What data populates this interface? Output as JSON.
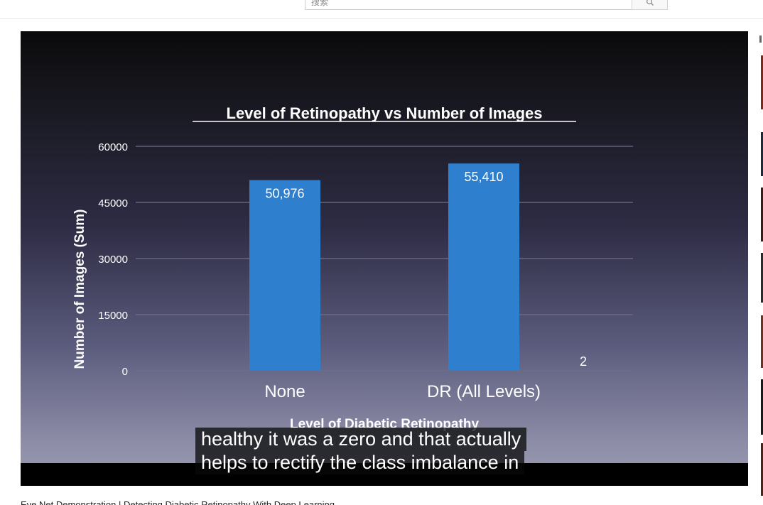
{
  "search": {
    "placeholder": "搜索"
  },
  "video": {
    "title": "Eye Net Demonstration | Detecting Diabetic Retinopathy With Deep Learning",
    "captions": [
      "healthy it was a zero and that actually",
      "helps to rectify the class imbalance in"
    ]
  },
  "chart_data": {
    "type": "bar",
    "title": "Level of Retinopathy vs Number of Images",
    "xlabel": "Level of Diabetic Retinopathy",
    "ylabel": "Number of Images (Sum)",
    "categories": [
      "None",
      "DR (All Levels)",
      ""
    ],
    "values": [
      50976,
      55410,
      2
    ],
    "data_labels": [
      "50,976",
      "55,410",
      "2"
    ],
    "yticks": [
      "0",
      "15000",
      "30000",
      "45000",
      "60000"
    ],
    "ylim": [
      0,
      60000
    ],
    "bar_color": "#2f7fcf",
    "grid": true
  },
  "sidebar": {
    "thumb_colors": [
      "#7a2a1a",
      "#1f2a38",
      "#3a1d18",
      "#2b2b2b",
      "#6a3324",
      "#1a1a1a",
      "#4a2418"
    ]
  }
}
